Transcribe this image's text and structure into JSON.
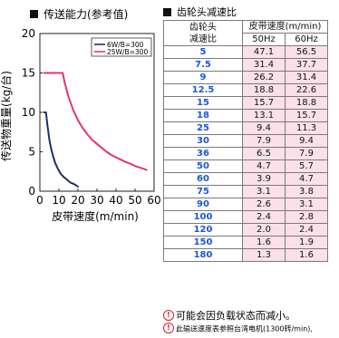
{
  "chart_data": {
    "type": "line",
    "title": "传送能力(参考值)",
    "xlabel": "皮带速度(m/min)",
    "ylabel": "传送物重量(kg/台)",
    "xlim": [
      0,
      60
    ],
    "ylim": [
      0,
      20
    ],
    "xticks": [
      "0",
      "10",
      "20",
      "30",
      "40",
      "50",
      "60"
    ],
    "yticks": [
      "0",
      "5",
      "10",
      "15",
      "20"
    ],
    "grid": false,
    "legend_position": "top-right",
    "series": [
      {
        "name": "6W/B=300",
        "color": "#1f2d6e",
        "x": [
          2.2,
          3.2,
          4.0,
          5.0,
          6.0,
          7.0,
          8.0,
          9.5,
          11.0,
          12.5,
          14.0,
          16.0,
          18.0,
          20.0
        ],
        "y": [
          10.0,
          10.0,
          8.3,
          6.5,
          5.3,
          4.4,
          3.6,
          2.8,
          2.2,
          1.8,
          1.5,
          1.1,
          0.9,
          0.6
        ]
      },
      {
        "name": "25W/B=300",
        "color": "#e8326e",
        "x": [
          2.2,
          12.0,
          13.0,
          15.0,
          17.5,
          20.0,
          22.5,
          25.0,
          27.5,
          30.0,
          32.5,
          35.0,
          37.5,
          40.0,
          42.5,
          45.0,
          47.5,
          50.0,
          52.5,
          55.0,
          56.0
        ],
        "y": [
          15.0,
          15.0,
          13.8,
          12.0,
          10.3,
          9.0,
          8.0,
          7.2,
          6.5,
          6.0,
          5.5,
          5.0,
          4.6,
          4.3,
          4.0,
          3.7,
          3.5,
          3.2,
          3.0,
          2.8,
          2.7
        ]
      }
    ]
  },
  "table": {
    "title": "齿轮头减速比",
    "header_ratio_line1": "齿轮头",
    "header_ratio_line2": "减速比",
    "header_speed": "皮带速度(m/min)",
    "header_50": "50Hz",
    "header_60": "60Hz",
    "rows": [
      {
        "ratio": "5",
        "hz50": "47.1",
        "hz60": "56.5"
      },
      {
        "ratio": "7.5",
        "hz50": "31.4",
        "hz60": "37.7"
      },
      {
        "ratio": "9",
        "hz50": "26.2",
        "hz60": "31.4"
      },
      {
        "ratio": "12.5",
        "hz50": "18.8",
        "hz60": "22.6"
      },
      {
        "ratio": "15",
        "hz50": "15.7",
        "hz60": "18.8"
      },
      {
        "ratio": "18",
        "hz50": "13.1",
        "hz60": "15.7"
      },
      {
        "ratio": "25",
        "hz50": "9.4",
        "hz60": "11.3"
      },
      {
        "ratio": "30",
        "hz50": "7.9",
        "hz60": "9.4"
      },
      {
        "ratio": "36",
        "hz50": "6.5",
        "hz60": "7.9"
      },
      {
        "ratio": "50",
        "hz50": "4.7",
        "hz60": "5.7"
      },
      {
        "ratio": "60",
        "hz50": "3.9",
        "hz60": "4.7"
      },
      {
        "ratio": "75",
        "hz50": "3.1",
        "hz60": "3.8"
      },
      {
        "ratio": "90",
        "hz50": "2.6",
        "hz60": "3.1"
      },
      {
        "ratio": "100",
        "hz50": "2.4",
        "hz60": "2.8"
      },
      {
        "ratio": "120",
        "hz50": "2.0",
        "hz60": "2.4"
      },
      {
        "ratio": "150",
        "hz50": "1.6",
        "hz60": "1.9"
      },
      {
        "ratio": "180",
        "hz50": "1.3",
        "hz60": "1.6"
      }
    ],
    "ratio_color": "#1b56d6",
    "speed_cell_bg": "#fbe0ea"
  },
  "notes": {
    "warn_symbol": "!",
    "note1": "可能会因负载状态而减小。",
    "note2": "此输送速度表参照台湾电机(1300转/min),"
  }
}
